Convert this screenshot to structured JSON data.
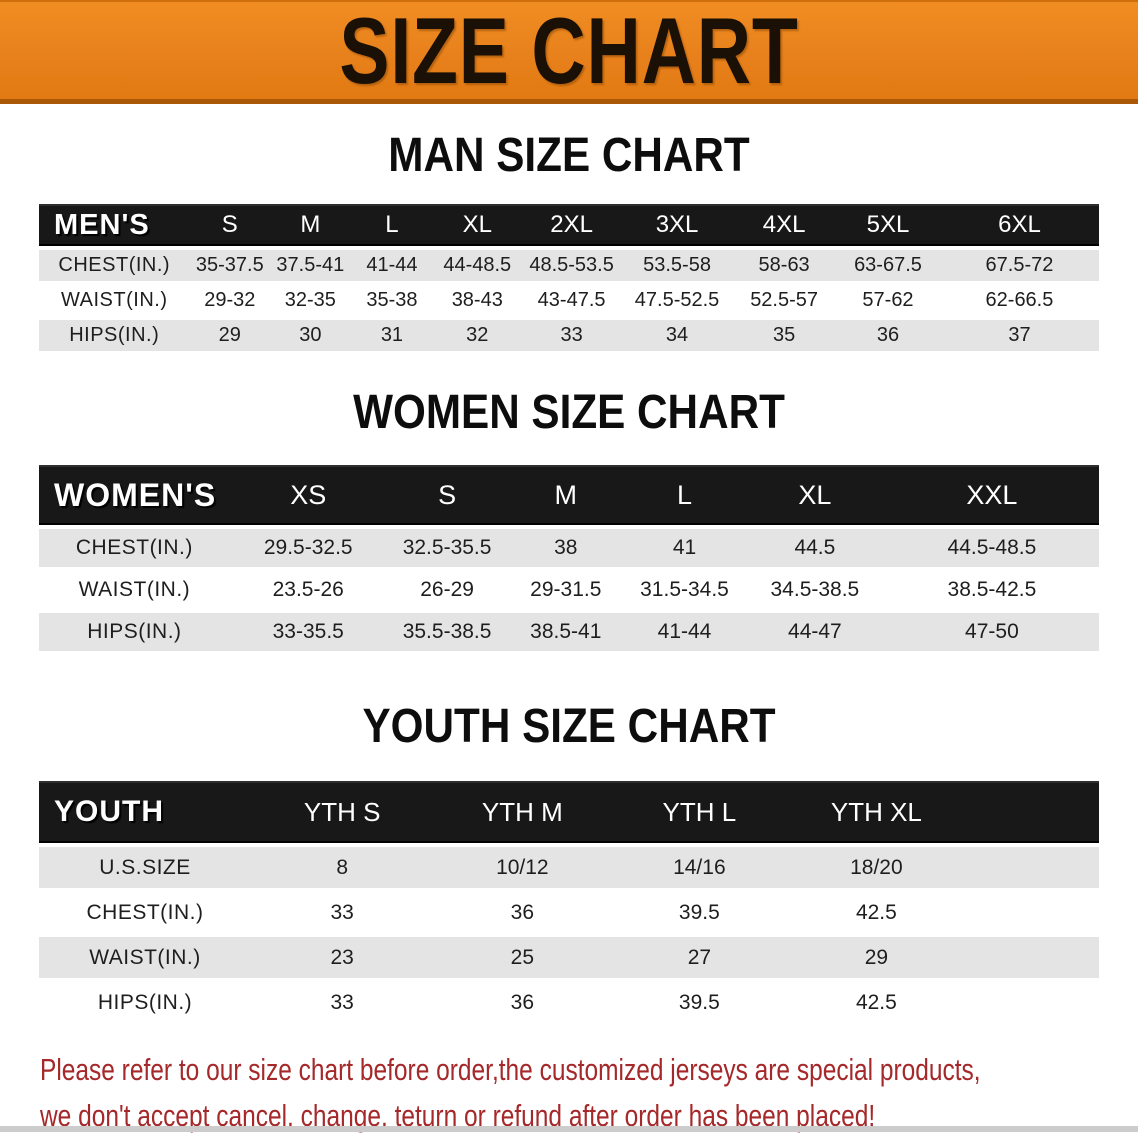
{
  "banner": {
    "title": "SIZE CHART"
  },
  "colors": {
    "banner_bg": "#E8811C",
    "header_bar": "#181818",
    "row_gray": "#E4E4E4",
    "disclaimer_red": "#A5282A"
  },
  "sections": [
    {
      "id": "men",
      "heading": "MAN SIZE CHART",
      "group_label": "MEN'S",
      "columns": [
        "S",
        "M",
        "L",
        "XL",
        "2XL",
        "3XL",
        "4XL",
        "5XL",
        "6XL"
      ],
      "rows": [
        {
          "label": "CHEST(IN.)",
          "values": [
            "35-37.5",
            "37.5-41",
            "41-44",
            "44-48.5",
            "48.5-53.5",
            "53.5-58",
            "58-63",
            "63-67.5",
            "67.5-72"
          ]
        },
        {
          "label": "WAIST(IN.)",
          "values": [
            "29-32",
            "32-35",
            "35-38",
            "38-43",
            "43-47.5",
            "47.5-52.5",
            "52.5-57",
            "57-62",
            "62-66.5"
          ]
        },
        {
          "label": "HIPS(IN.)",
          "values": [
            "29",
            "30",
            "31",
            "32",
            "33",
            "34",
            "35",
            "36",
            "37"
          ]
        }
      ]
    },
    {
      "id": "women",
      "heading": "WOMEN SIZE CHART",
      "group_label": "WOMEN'S",
      "columns": [
        "XS",
        "S",
        "M",
        "L",
        "XL",
        "XXL"
      ],
      "rows": [
        {
          "label": "CHEST(IN.)",
          "values": [
            "29.5-32.5",
            "32.5-35.5",
            "38",
            "41",
            "44.5",
            "44.5-48.5"
          ]
        },
        {
          "label": "WAIST(IN.)",
          "values": [
            "23.5-26",
            "26-29",
            "29-31.5",
            "31.5-34.5",
            "34.5-38.5",
            "38.5-42.5"
          ]
        },
        {
          "label": "HIPS(IN.)",
          "values": [
            "33-35.5",
            "35.5-38.5",
            "38.5-41",
            "41-44",
            "44-47",
            "47-50"
          ]
        }
      ]
    },
    {
      "id": "youth",
      "heading": "YOUTH SIZE CHART",
      "group_label": "YOUTH",
      "columns": [
        "YTH S",
        "YTH M",
        "YTH L",
        "YTH XL"
      ],
      "rows": [
        {
          "label": "U.S.SIZE",
          "values": [
            "8",
            "10/12",
            "14/16",
            "18/20"
          ]
        },
        {
          "label": "CHEST(IN.)",
          "values": [
            "33",
            "36",
            "39.5",
            "42.5"
          ]
        },
        {
          "label": "WAIST(IN.)",
          "values": [
            "23",
            "25",
            "27",
            "29"
          ]
        },
        {
          "label": "HIPS(IN.)",
          "values": [
            "33",
            "36",
            "39.5",
            "42.5"
          ]
        }
      ]
    }
  ],
  "disclaimer": {
    "line1": "Please refer to our size chart before order,the customized jerseys are special products,",
    "line2": "we don't accept cancel, change, teturn or refund after order has been placed!"
  }
}
